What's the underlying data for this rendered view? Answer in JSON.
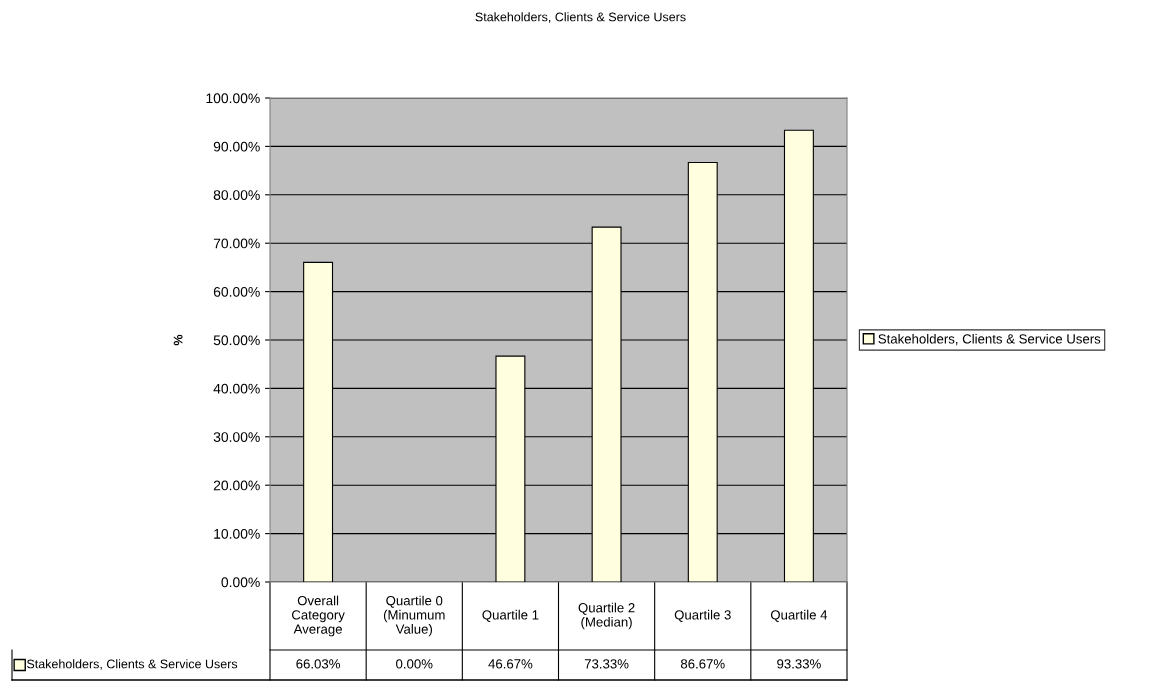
{
  "chart_data": {
    "type": "bar",
    "title": "Stakeholders, Clients & Service Users",
    "ylabel": "%",
    "categories": [
      "Overall\nCategory\nAverage",
      "Quartile 0\n(Minumum\nValue)",
      "Quartile 1",
      "Quartile 2\n(Median)",
      "Quartile 3",
      "Quartile 4"
    ],
    "series": [
      {
        "name": "Stakeholders, Clients & Service Users",
        "color": "#ffffe0",
        "values": [
          66.03,
          0.0,
          46.67,
          73.33,
          86.67,
          93.33
        ],
        "value_labels": [
          "66.03%",
          "0.00%",
          "46.67%",
          "73.33%",
          "86.67%",
          "93.33%"
        ]
      }
    ],
    "ylim": [
      0,
      100
    ],
    "yticks": [
      {
        "value": 0,
        "label": "0.00%"
      },
      {
        "value": 10,
        "label": "10.00%"
      },
      {
        "value": 20,
        "label": "20.00%"
      },
      {
        "value": 30,
        "label": "30.00%"
      },
      {
        "value": 40,
        "label": "40.00%"
      },
      {
        "value": 50,
        "label": "50.00%"
      },
      {
        "value": 60,
        "label": "60.00%"
      },
      {
        "value": 70,
        "label": "70.00%"
      },
      {
        "value": 80,
        "label": "80.00%"
      },
      {
        "value": 90,
        "label": "90.00%"
      },
      {
        "value": 100,
        "label": "100.00%"
      }
    ],
    "grid": "y",
    "legend": "right"
  }
}
